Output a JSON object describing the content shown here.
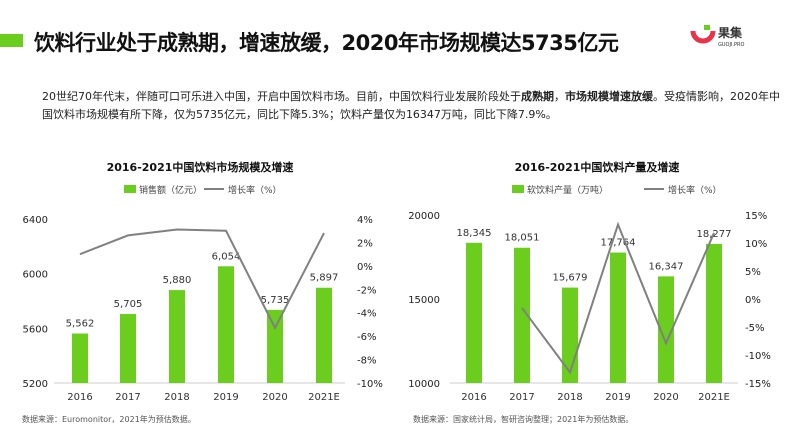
{
  "header": {
    "title": "饮料行业处于成熟期，增速放缓，2020年市场规模达5735亿元",
    "logo_text": "果集",
    "logo_sub": "GUOJI.PRO",
    "accent": "#6bcd1e"
  },
  "intro": {
    "p1": "20世纪70年代末，伴随可口可乐进入中国，开启中国饮料市场。目前，中国饮料行业发展阶段处于",
    "b1": "成熟期",
    "p2": "，",
    "b2": "市场规模增速放缓",
    "p3": "。受疫情影响，2020年中国饮料市场规模有所下降，仅为5735亿元，同比下降5.3%；饮料产量仅为16347万吨，同比下降7.9%。"
  },
  "chart_data": [
    {
      "type": "bar+line",
      "title": "2016-2021中国饮料市场规模及增速",
      "categories": [
        "2016",
        "2017",
        "2018",
        "2019",
        "2020",
        "2021E"
      ],
      "series": [
        {
          "name": "销售额（亿元）",
          "type": "bar",
          "values": [
            5562,
            5705,
            5880,
            6054,
            5735,
            5897
          ],
          "labels": [
            "5,562",
            "5,705",
            "5,880",
            "6,054",
            "5,735",
            "5,897"
          ]
        },
        {
          "name": "增长率（%）",
          "type": "line",
          "axis": "right",
          "values": [
            1.0,
            2.6,
            3.1,
            3.0,
            -5.3,
            2.8
          ]
        }
      ],
      "ylim": [
        5200,
        6400
      ],
      "yticks": [
        "5200",
        "5600",
        "6000",
        "6400"
      ],
      "y2lim": [
        -10,
        4
      ],
      "y2ticks": [
        "4%",
        "2%",
        "0%",
        "-2%",
        "-4%",
        "-6%",
        "-8%",
        "-10%"
      ],
      "source": "数据来源：Euromonitor，2021年为预估数据。",
      "legend": "top",
      "bar_color": "#6bcd1e",
      "line_color": "#808080"
    },
    {
      "type": "bar+line",
      "title": "2016-2021中国饮料产量及增速",
      "categories": [
        "2016",
        "2017",
        "2018",
        "2019",
        "2020",
        "2021E"
      ],
      "series": [
        {
          "name": "软饮料产量（万吨）",
          "type": "bar",
          "values": [
            18345,
            18051,
            15679,
            17764,
            16347,
            18277
          ],
          "labels": [
            "18,345",
            "18,051",
            "15,679",
            "17,764",
            "16,347",
            "18,277"
          ]
        },
        {
          "name": "增长率（%）",
          "type": "line",
          "axis": "right",
          "values": [
            null,
            -1.6,
            -13.1,
            13.3,
            -7.9,
            11.8
          ]
        }
      ],
      "ylim": [
        10000,
        20000
      ],
      "yticks": [
        "10000",
        "15000",
        "20000"
      ],
      "y2lim": [
        -15,
        15
      ],
      "y2ticks": [
        "15%",
        "10%",
        "5%",
        "0%",
        "-5%",
        "-10%",
        "-15%"
      ],
      "source": "数据来源：国家统计局，智研咨询整理；2021年为预估数据。",
      "legend": "top",
      "bar_color": "#6bcd1e",
      "line_color": "#808080"
    }
  ]
}
